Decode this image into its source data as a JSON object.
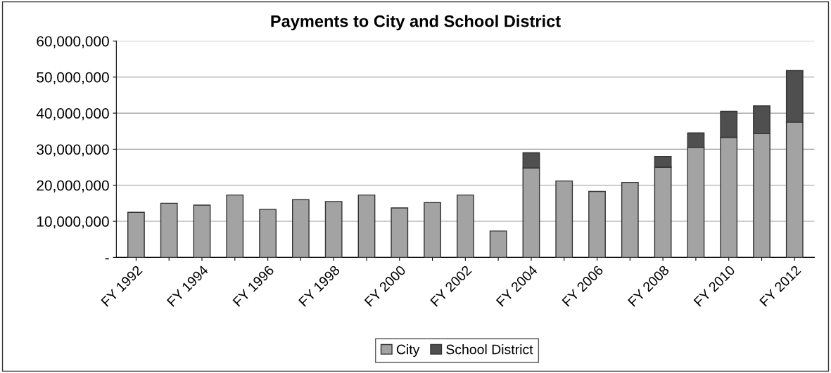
{
  "chart_data": {
    "type": "bar",
    "title": "Payments to City and School District",
    "categories": [
      "FY 1992",
      null,
      "FY 1994",
      null,
      "FY 1996",
      null,
      "FY 1998",
      null,
      "FY 2000",
      null,
      "FY 2002",
      null,
      "FY 2004",
      null,
      "FY 2006",
      null,
      "FY 2008",
      null,
      "FY 2010",
      null,
      "FY 2012"
    ],
    "stacked": true,
    "series": [
      {
        "name": "City",
        "color": "#a3a3a3",
        "values": [
          12500000,
          15000000,
          14500000,
          17300000,
          13300000,
          16000000,
          15500000,
          17300000,
          13700000,
          15200000,
          17300000,
          7300000,
          24800000,
          21200000,
          18300000,
          20800000,
          25000000,
          30500000,
          33300000,
          34300000,
          37500000
        ]
      },
      {
        "name": "School District",
        "color": "#4f4f4f",
        "values": [
          null,
          null,
          null,
          null,
          null,
          null,
          null,
          null,
          null,
          null,
          null,
          null,
          4200000,
          null,
          null,
          null,
          3000000,
          4000000,
          7200000,
          7700000,
          14300000
        ]
      }
    ],
    "ylim": [
      0,
      60000000
    ],
    "yticks": [
      {
        "value": 0,
        "label": "-"
      },
      {
        "value": 10000000,
        "label": "10,000,000"
      },
      {
        "value": 20000000,
        "label": "20,000,000"
      },
      {
        "value": 30000000,
        "label": "30,000,000"
      },
      {
        "value": 40000000,
        "label": "40,000,000"
      },
      {
        "value": 50000000,
        "label": "50,000,000"
      },
      {
        "value": 60000000,
        "label": "60,000,000"
      }
    ],
    "grid": "y",
    "legend": "bottom"
  }
}
